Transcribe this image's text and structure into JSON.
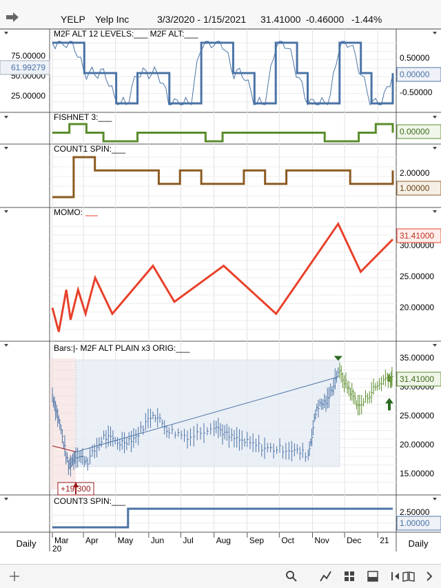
{
  "header": {
    "symbol": "YELP",
    "name": "Yelp Inc",
    "range": "3/3/2020 - 1/15/2021",
    "last": "31.41000",
    "change": "-0.46000",
    "pct": "-1.44%"
  },
  "colors": {
    "blue": "#4a73a6",
    "green": "#5a8c2b",
    "brown": "#8b5a20",
    "red": "#e8412a",
    "darkred": "#9a1a1a"
  },
  "icons": [
    "arrow-right-icon",
    "plus-icon",
    "search-icon",
    "draw-icon",
    "grid-icon",
    "panel-icon",
    "sidebar-icon",
    "book-icon",
    "chevron-right-icon"
  ],
  "panels": {
    "m2f": {
      "label": "M2F ALT 12 LEVELS:___   M2F ALT:___",
      "left_ticks": [
        "75.00000",
        "50.00000",
        "25.00000"
      ],
      "left_value": "61.99279",
      "right_ticks": [
        "0.50000",
        "-0.50000"
      ],
      "right_value": "0.00000"
    },
    "fishnet": {
      "label": "FISHNET 3:___",
      "right_value": "0.00000"
    },
    "count1": {
      "label": "COUNT1 SPIN:___",
      "right_ticks": [
        "2.00000"
      ],
      "right_value": "1.00000"
    },
    "momo": {
      "label": "MOMO:",
      "right_ticks": [
        "30.00000",
        "25.00000",
        "20.00000"
      ],
      "right_value": "31.41000"
    },
    "bars": {
      "label": "Bars:|-   M2F ALT PLAIN x3 ORIG:___",
      "right_ticks": [
        "35.00000",
        "30.00000",
        "25.00000",
        "20.00000",
        "15.00000"
      ],
      "right_value": "31.41000",
      "annotation": "+19.300"
    },
    "count3": {
      "label": "COUNT3 SPIN:___",
      "right_ticks": [
        "2.50000"
      ],
      "right_value": "1.00000"
    }
  },
  "xaxis": {
    "months": [
      "Mar",
      "Apr",
      "May",
      "Jun",
      "Jul",
      "Aug",
      "Sep",
      "Oct",
      "Nov",
      "Dec",
      "21"
    ],
    "year": "20",
    "left_label": "Daily",
    "right_label": "Daily"
  },
  "chart_data": [
    {
      "type": "line",
      "title": "M2F ALT 12 LEVELS / M2F ALT",
      "series": [
        {
          "name": "M2F ALT 12 LEVELS",
          "values": [
            0,
            0,
            0,
            50,
            50,
            50,
            100,
            100,
            50,
            50,
            50,
            100,
            100,
            100,
            0,
            0,
            0,
            50,
            50,
            100,
            100,
            0,
            0,
            50,
            100,
            100,
            100,
            0,
            0,
            50,
            100,
            100,
            50
          ]
        }
      ]
    },
    {
      "type": "line",
      "title": "FISHNET 3",
      "series": [
        {
          "name": "FISHNET 3",
          "values": [
            0,
            -1,
            0,
            1,
            1,
            0,
            0,
            0,
            0,
            1,
            0,
            0,
            0,
            0,
            0,
            0,
            1,
            1,
            0,
            -1,
            0
          ]
        }
      ]
    },
    {
      "type": "line",
      "title": "COUNT1 SPIN",
      "series": [
        {
          "name": "COUNT1 SPIN",
          "values": [
            3,
            0,
            1,
            1,
            1,
            2,
            1,
            2,
            2,
            1,
            2,
            1,
            1,
            1,
            2,
            2,
            1
          ]
        }
      ]
    },
    {
      "type": "line",
      "title": "MOMO",
      "ylim": [
        15,
        35
      ],
      "series": [
        {
          "name": "MOMO",
          "values": [
            {
              "x": "2020-03-03",
              "y": 20
            },
            {
              "x": "2020-03-09",
              "y": 16
            },
            {
              "x": "2020-03-16",
              "y": 23
            },
            {
              "x": "2020-03-20",
              "y": 18
            },
            {
              "x": "2020-03-27",
              "y": 23
            },
            {
              "x": "2020-04-03",
              "y": 19
            },
            {
              "x": "2020-04-12",
              "y": 25
            },
            {
              "x": "2020-04-28",
              "y": 19
            },
            {
              "x": "2020-06-05",
              "y": 27
            },
            {
              "x": "2020-06-25",
              "y": 21
            },
            {
              "x": "2020-08-10",
              "y": 27
            },
            {
              "x": "2020-09-28",
              "y": 19
            },
            {
              "x": "2020-11-25",
              "y": 34
            },
            {
              "x": "2020-12-16",
              "y": 26
            },
            {
              "x": "2021-01-15",
              "y": 31.41
            }
          ]
        }
      ]
    },
    {
      "type": "line",
      "title": "Bars (price)",
      "ylim": [
        13,
        36
      ],
      "series": [
        {
          "name": "M2F ALT PLAIN x3 ORIG",
          "values": [
            {
              "x": "2020-03-03",
              "y": 29
            },
            {
              "x": "2020-03-10",
              "y": 24
            },
            {
              "x": "2020-03-18",
              "y": 17
            },
            {
              "x": "2020-03-25",
              "y": 19
            },
            {
              "x": "2020-04-05",
              "y": 18
            },
            {
              "x": "2020-04-20",
              "y": 22
            },
            {
              "x": "2020-05-05",
              "y": 21
            },
            {
              "x": "2020-05-20",
              "y": 22
            },
            {
              "x": "2020-06-05",
              "y": 26
            },
            {
              "x": "2020-06-20",
              "y": 23
            },
            {
              "x": "2020-07-10",
              "y": 22
            },
            {
              "x": "2020-08-01",
              "y": 24
            },
            {
              "x": "2020-08-15",
              "y": 22
            },
            {
              "x": "2020-09-01",
              "y": 21
            },
            {
              "x": "2020-09-20",
              "y": 20
            },
            {
              "x": "2020-10-10",
              "y": 20
            },
            {
              "x": "2020-10-28",
              "y": 19
            },
            {
              "x": "2020-11-05",
              "y": 27
            },
            {
              "x": "2020-11-15",
              "y": 28
            },
            {
              "x": "2020-11-25",
              "y": 33
            },
            {
              "x": "2020-12-05",
              "y": 30
            },
            {
              "x": "2020-12-15",
              "y": 27
            },
            {
              "x": "2020-12-28",
              "y": 30
            },
            {
              "x": "2021-01-10",
              "y": 32
            },
            {
              "x": "2021-01-15",
              "y": 31.41
            }
          ]
        }
      ]
    },
    {
      "type": "line",
      "title": "COUNT3 SPIN",
      "series": [
        {
          "name": "COUNT3 SPIN",
          "values": [
            3,
            3,
            1,
            1,
            1,
            1,
            1,
            1,
            1,
            1
          ]
        }
      ]
    }
  ]
}
